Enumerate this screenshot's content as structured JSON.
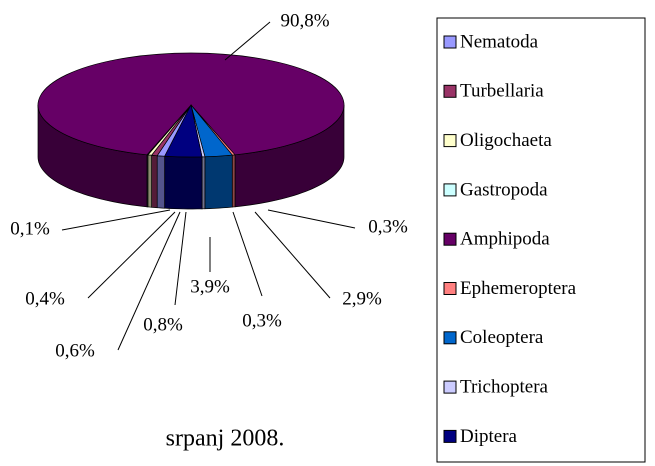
{
  "chart_data": {
    "type": "pie3d",
    "title": "srpanj 2008.",
    "categories": [
      "Nematoda",
      "Turbellaria",
      "Oligochaeta",
      "Gastropoda",
      "Amphipoda",
      "Ephemeroptera",
      "Coleoptera",
      "Trichoptera",
      "Diptera"
    ],
    "values": [
      0.8,
      0.6,
      0.4,
      0.1,
      90.8,
      0.3,
      2.9,
      0.3,
      3.9
    ],
    "value_labels": [
      "0,8%",
      "0,6%",
      "0,4%",
      "0,1%",
      "90,8%",
      "0,3%",
      "2,9%",
      "0,3%",
      "3,9%"
    ],
    "colors": [
      "#9999ff",
      "#993366",
      "#ffffcc",
      "#ccffff",
      "#660066",
      "#ff8080",
      "#0066cc",
      "#ccccff",
      "#000080"
    ],
    "legend": "right"
  }
}
